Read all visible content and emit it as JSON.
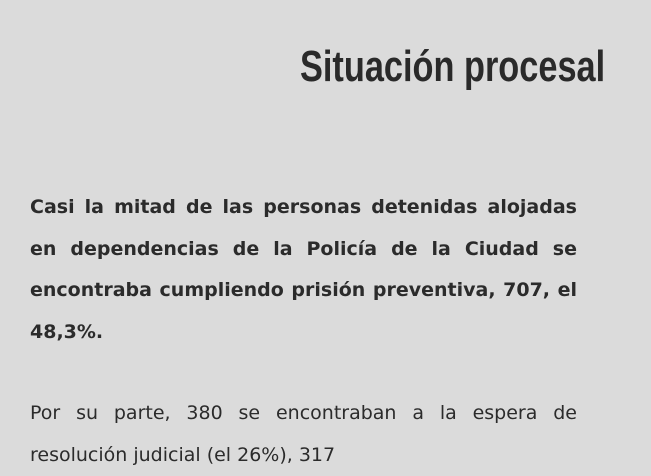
{
  "header": {
    "title": "Situación procesal"
  },
  "paragraphs": [
    {
      "text": "Casi la mitad de las personas detenidas alojadas en dependencias de la Policía de la Ciudad se encontraba cumpliendo prisión preventiva, 707, el 48,3%.",
      "bold": true
    },
    {
      "text": "Por su parte, 380 se encontraban a la espera de resolución judicial (el 26%), 317",
      "bold": false
    }
  ]
}
